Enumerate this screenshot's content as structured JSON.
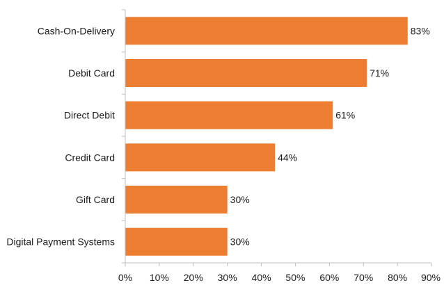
{
  "chart_data": {
    "type": "bar",
    "orientation": "horizontal",
    "title": "",
    "xlabel": "",
    "ylabel": "",
    "categories": [
      "Cash-On-Delivery",
      "Debit Card",
      "Direct Debit",
      "Credit Card",
      "Gift Card",
      "Digital Payment Systems"
    ],
    "values": [
      83,
      71,
      61,
      44,
      30,
      30
    ],
    "data_labels": [
      "83%",
      "71%",
      "61%",
      "44%",
      "30%",
      "30%"
    ],
    "xlim": [
      0,
      90
    ],
    "x_ticks": [
      0,
      10,
      20,
      30,
      40,
      50,
      60,
      70,
      80,
      90
    ],
    "x_tick_labels": [
      "0%",
      "10%",
      "20%",
      "30%",
      "40%",
      "50%",
      "60%",
      "70%",
      "80%",
      "90%"
    ],
    "bar_color": "#ed7d31",
    "axis_color": "#bfbfbf",
    "grid": false,
    "legend": "none"
  }
}
